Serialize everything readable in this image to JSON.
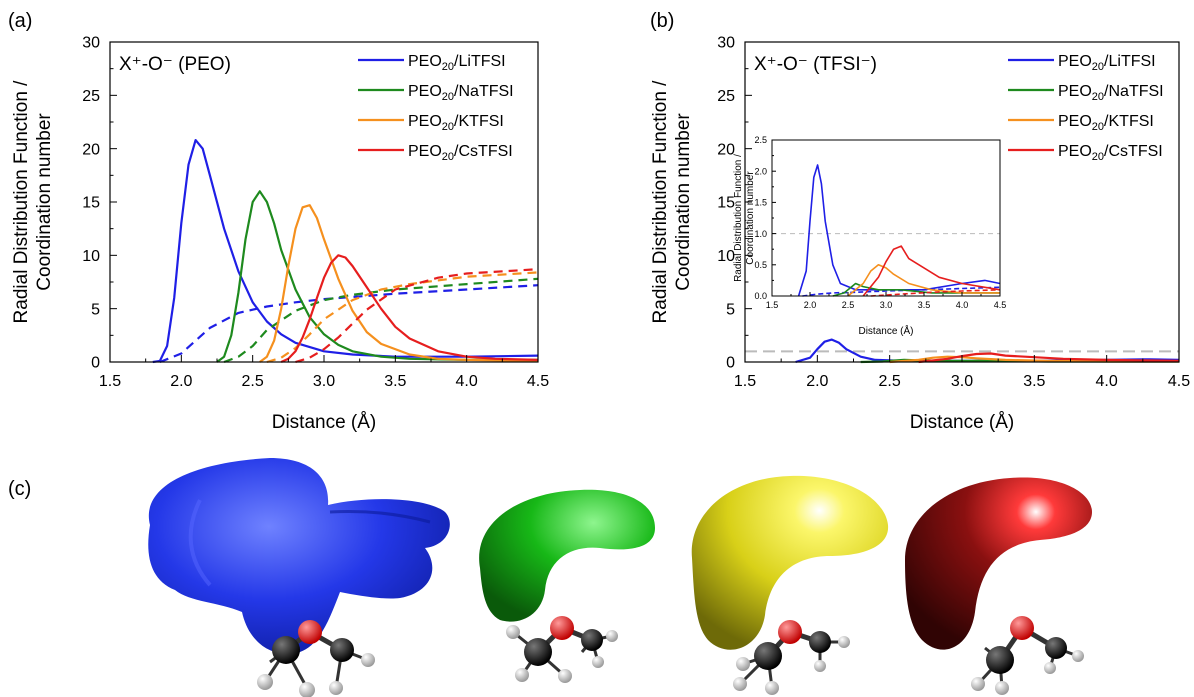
{
  "panels": {
    "a": "(a)",
    "b": "(b)",
    "c": "(c)"
  },
  "series_styles": [
    {
      "name": "PEO20/LiTFSI",
      "color": "#1f1fe6"
    },
    {
      "name": "PEO20/NaTFSI",
      "color": "#1e8a1e"
    },
    {
      "name": "PEO20/KTFSI",
      "color": "#f5901e"
    },
    {
      "name": "PEO20/CsTFSI",
      "color": "#e61e1e"
    }
  ],
  "chart_data": [
    {
      "id": "a",
      "type": "line",
      "title": "X⁺-O⁻ (PEO)",
      "xlabel": "Distance (Å)",
      "ylabel_line1": "Radial Distribution Function /",
      "ylabel_line2": "Coordination number",
      "xlim": [
        1.5,
        4.5
      ],
      "ylim": [
        0,
        30
      ],
      "xticks": [
        "1.5",
        "2.0",
        "2.5",
        "3.0",
        "3.5",
        "4.0",
        "4.5"
      ],
      "yticks": [
        "0",
        "5",
        "10",
        "15",
        "20",
        "25",
        "30"
      ],
      "legend_position": "top-right",
      "series": [
        {
          "name": "PEO20/LiTFSI",
          "kind": "rdf",
          "x": [
            1.8,
            1.85,
            1.9,
            1.95,
            2.0,
            2.05,
            2.1,
            2.15,
            2.2,
            2.3,
            2.4,
            2.5,
            2.6,
            2.7,
            2.8,
            3.0,
            3.2,
            3.5,
            4.0,
            4.5
          ],
          "y": [
            0,
            0.1,
            1.5,
            6.0,
            13.0,
            18.5,
            20.8,
            20.0,
            17.5,
            12.5,
            8.5,
            5.6,
            3.8,
            2.6,
            1.8,
            1.0,
            0.7,
            0.5,
            0.5,
            0.6
          ]
        },
        {
          "name": "PEO20/LiTFSI",
          "kind": "cn",
          "x": [
            1.85,
            2.0,
            2.1,
            2.2,
            2.4,
            2.6,
            2.8,
            3.0,
            3.5,
            4.0,
            4.5
          ],
          "y": [
            0,
            0.8,
            2.0,
            3.2,
            4.6,
            5.2,
            5.6,
            5.9,
            6.4,
            6.8,
            7.2
          ]
        },
        {
          "name": "PEO20/NaTFSI",
          "kind": "rdf",
          "x": [
            2.25,
            2.3,
            2.35,
            2.4,
            2.45,
            2.5,
            2.55,
            2.6,
            2.65,
            2.7,
            2.8,
            2.9,
            3.0,
            3.1,
            3.2,
            3.4,
            3.6,
            4.0,
            4.5
          ],
          "y": [
            0,
            0.5,
            2.5,
            6.5,
            11.5,
            15.0,
            16.0,
            15.0,
            13.0,
            10.5,
            6.8,
            4.2,
            2.6,
            1.6,
            1.0,
            0.5,
            0.3,
            0.2,
            0.2
          ]
        },
        {
          "name": "PEO20/NaTFSI",
          "kind": "cn",
          "x": [
            2.3,
            2.4,
            2.5,
            2.6,
            2.8,
            3.0,
            3.2,
            3.5,
            4.0,
            4.5
          ],
          "y": [
            0,
            0.5,
            1.5,
            3.0,
            4.8,
            5.8,
            6.3,
            6.8,
            7.3,
            7.8
          ]
        },
        {
          "name": "PEO20/KTFSI",
          "kind": "rdf",
          "x": [
            2.55,
            2.6,
            2.65,
            2.7,
            2.75,
            2.8,
            2.85,
            2.9,
            2.95,
            3.0,
            3.1,
            3.2,
            3.3,
            3.4,
            3.6,
            3.8,
            4.0,
            4.5
          ],
          "y": [
            0,
            0.5,
            2.0,
            5.0,
            9.0,
            12.5,
            14.5,
            14.7,
            13.5,
            11.5,
            7.8,
            4.8,
            2.8,
            1.7,
            0.7,
            0.3,
            0.2,
            0.1
          ]
        },
        {
          "name": "PEO20/KTFSI",
          "kind": "cn",
          "x": [
            2.6,
            2.7,
            2.8,
            2.9,
            3.0,
            3.2,
            3.4,
            3.6,
            4.0,
            4.5
          ],
          "y": [
            0,
            0.4,
            1.3,
            2.6,
            4.0,
            5.8,
            6.8,
            7.3,
            8.0,
            8.4
          ]
        },
        {
          "name": "PEO20/CsTFSI",
          "kind": "rdf",
          "x": [
            2.7,
            2.75,
            2.8,
            2.85,
            2.9,
            2.95,
            3.0,
            3.05,
            3.1,
            3.15,
            3.2,
            3.3,
            3.4,
            3.5,
            3.6,
            3.8,
            4.0,
            4.2,
            4.5
          ],
          "y": [
            0,
            0.3,
            1.0,
            2.3,
            4.0,
            6.0,
            7.9,
            9.3,
            10.0,
            9.8,
            9.0,
            7.0,
            5.0,
            3.3,
            2.2,
            1.0,
            0.5,
            0.3,
            0.2
          ]
        },
        {
          "name": "PEO20/CsTFSI",
          "kind": "cn",
          "x": [
            2.8,
            2.9,
            3.0,
            3.1,
            3.2,
            3.3,
            3.5,
            3.8,
            4.0,
            4.5
          ],
          "y": [
            0,
            0.4,
            1.2,
            2.3,
            3.6,
            4.9,
            6.8,
            7.9,
            8.3,
            8.7
          ]
        }
      ]
    },
    {
      "id": "b",
      "type": "line",
      "title": "X⁺-O⁻ (TFSI⁻)",
      "xlabel": "Distance (Å)",
      "ylabel_line1": "Radial Distribution Function /",
      "ylabel_line2": "Coordination number",
      "xlim": [
        1.5,
        4.5
      ],
      "ylim": [
        0,
        30
      ],
      "xticks": [
        "1.5",
        "2.0",
        "2.5",
        "3.0",
        "3.5",
        "4.0",
        "4.5"
      ],
      "yticks": [
        "0",
        "5",
        "10",
        "15",
        "20",
        "25",
        "30"
      ],
      "reference_line_y": 1,
      "legend_position": "top-right",
      "series": [
        {
          "name": "PEO20/LiTFSI",
          "kind": "rdf",
          "x": [
            1.85,
            1.95,
            2.0,
            2.05,
            2.1,
            2.15,
            2.2,
            2.3,
            2.4,
            2.6,
            3.0,
            3.5,
            4.0,
            4.3,
            4.5
          ],
          "y": [
            0,
            0.4,
            1.2,
            1.9,
            2.1,
            1.8,
            1.2,
            0.5,
            0.2,
            0.1,
            0.1,
            0.1,
            0.2,
            0.25,
            0.2
          ]
        },
        {
          "name": "PEO20/NaTFSI",
          "kind": "rdf",
          "x": [
            2.3,
            2.45,
            2.55,
            2.6,
            2.7,
            2.9,
            3.2,
            3.6,
            4.0,
            4.5
          ],
          "y": [
            0,
            0.05,
            0.15,
            0.2,
            0.15,
            0.1,
            0.1,
            0.05,
            0.05,
            0.05
          ]
        },
        {
          "name": "PEO20/KTFSI",
          "kind": "rdf",
          "x": [
            2.5,
            2.7,
            2.8,
            2.9,
            3.0,
            3.1,
            3.3,
            3.6,
            4.0,
            4.5
          ],
          "y": [
            0,
            0.2,
            0.4,
            0.5,
            0.45,
            0.35,
            0.2,
            0.1,
            0.05,
            0.05
          ]
        },
        {
          "name": "PEO20/CsTFSI",
          "kind": "rdf",
          "x": [
            2.7,
            2.9,
            3.0,
            3.1,
            3.2,
            3.3,
            3.5,
            3.7,
            4.0,
            4.5
          ],
          "y": [
            0,
            0.3,
            0.55,
            0.75,
            0.8,
            0.6,
            0.45,
            0.3,
            0.2,
            0.1
          ]
        }
      ]
    },
    {
      "id": "b-inset",
      "type": "line",
      "xlabel": "Distance (Å)",
      "ylabel_line1": "Radial Distribution Function /",
      "ylabel_line2": "Coordination number",
      "xlim": [
        1.5,
        4.5
      ],
      "ylim": [
        0,
        2.5
      ],
      "xticks": [
        "1.5",
        "2.0",
        "2.5",
        "3.0",
        "3.5",
        "4.0",
        "4.5"
      ],
      "yticks": [
        "0.0",
        "0.5",
        "1.0",
        "1.5",
        "2.0",
        "2.5"
      ],
      "reference_line_y": 1,
      "series": [
        {
          "name": "PEO20/LiTFSI",
          "kind": "rdf",
          "x": [
            1.85,
            1.95,
            2.0,
            2.05,
            2.1,
            2.15,
            2.2,
            2.3,
            2.4,
            2.6,
            3.0,
            3.5,
            4.0,
            4.3,
            4.5
          ],
          "y": [
            0,
            0.4,
            1.2,
            1.9,
            2.1,
            1.8,
            1.2,
            0.5,
            0.2,
            0.1,
            0.1,
            0.1,
            0.2,
            0.25,
            0.2
          ]
        },
        {
          "name": "PEO20/LiTFSI",
          "kind": "cn",
          "x": [
            1.9,
            2.1,
            2.3,
            2.6,
            3.0,
            3.5,
            4.0,
            4.5
          ],
          "y": [
            0,
            0.03,
            0.05,
            0.06,
            0.08,
            0.1,
            0.12,
            0.14
          ]
        },
        {
          "name": "PEO20/NaTFSI",
          "kind": "rdf",
          "x": [
            2.3,
            2.45,
            2.55,
            2.6,
            2.7,
            2.9,
            3.2,
            3.6,
            4.0,
            4.5
          ],
          "y": [
            0,
            0.05,
            0.15,
            0.2,
            0.15,
            0.1,
            0.1,
            0.05,
            0.05,
            0.05
          ]
        },
        {
          "name": "PEO20/KTFSI",
          "kind": "rdf",
          "x": [
            2.5,
            2.7,
            2.8,
            2.9,
            3.0,
            3.1,
            3.3,
            3.6,
            4.0,
            4.5
          ],
          "y": [
            0,
            0.2,
            0.4,
            0.5,
            0.45,
            0.35,
            0.2,
            0.1,
            0.05,
            0.05
          ]
        },
        {
          "name": "PEO20/CsTFSI",
          "kind": "rdf",
          "x": [
            2.7,
            2.9,
            3.0,
            3.1,
            3.2,
            3.3,
            3.5,
            3.7,
            4.0,
            4.5
          ],
          "y": [
            0,
            0.3,
            0.55,
            0.75,
            0.8,
            0.6,
            0.45,
            0.3,
            0.2,
            0.1
          ]
        },
        {
          "name": "PEO20/CsTFSI",
          "kind": "cn",
          "x": [
            2.8,
            3.2,
            3.6,
            4.0,
            4.5
          ],
          "y": [
            0,
            0.03,
            0.06,
            0.08,
            0.1
          ]
        }
      ]
    }
  ],
  "isosurfaces": [
    {
      "name": "Li",
      "color": "#2438e8"
    },
    {
      "name": "Na",
      "color": "#17b817"
    },
    {
      "name": "K",
      "color": "#e6e024"
    },
    {
      "name": "Cs",
      "color": "#7a1010"
    }
  ]
}
